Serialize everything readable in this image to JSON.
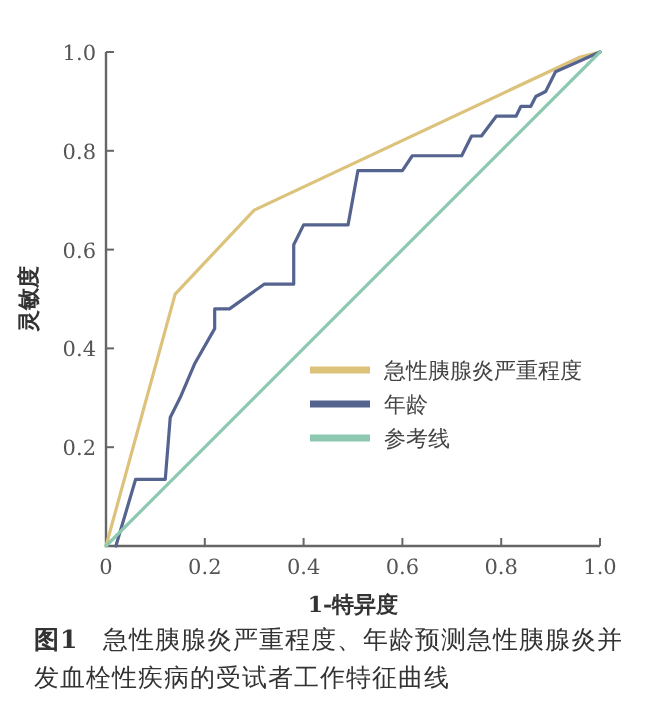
{
  "chart_data": {
    "type": "line",
    "xlabel": "1-特异度",
    "ylabel": "灵敏度",
    "xlim": [
      0,
      1
    ],
    "ylim": [
      0,
      1
    ],
    "xticks": [
      0,
      0.2,
      0.4,
      0.6,
      0.8,
      {
        "value": 1,
        "label": "1.0"
      }
    ],
    "yticks": [
      {
        "value": 0,
        "label": null
      },
      0.2,
      0.4,
      0.6,
      0.8,
      {
        "value": 1,
        "label": "1.0"
      }
    ],
    "grid": false,
    "legend": "right",
    "marker": "none",
    "line_style": "solid",
    "series": [
      {
        "name": "急性胰腺炎严重程度",
        "color": "#dcc27a",
        "x": [
          0,
          0.14,
          0.3,
          0.96,
          1
        ],
        "values": [
          0,
          0.51,
          0.68,
          0.99,
          1
        ]
      },
      {
        "name": "年龄",
        "color": "#55638f",
        "x": [
          0.02,
          0.06,
          0.12,
          0.13,
          0.15,
          0.18,
          0.22,
          0.22,
          0.25,
          0.32,
          0.38,
          0.38,
          0.4,
          0.49,
          0.51,
          0.6,
          0.62,
          0.72,
          0.74,
          0.76,
          0.79,
          0.83,
          0.84,
          0.86,
          0.87,
          0.89,
          0.91,
          1
        ],
        "values": [
          0,
          0.135,
          0.135,
          0.26,
          0.3,
          0.37,
          0.44,
          0.48,
          0.48,
          0.53,
          0.53,
          0.61,
          0.65,
          0.65,
          0.76,
          0.76,
          0.79,
          0.79,
          0.83,
          0.83,
          0.87,
          0.87,
          0.89,
          0.89,
          0.91,
          0.92,
          0.96,
          1
        ]
      },
      {
        "name": "参考线",
        "color": "#8cc9b0",
        "x": [
          0,
          1
        ],
        "values": [
          0,
          1
        ]
      }
    ],
    "annotations": [
      "**图1**　急性胰腺炎严重程度、年龄预测急性胰腺炎并发血栓性疾病的受试者工作特征曲线"
    ]
  }
}
